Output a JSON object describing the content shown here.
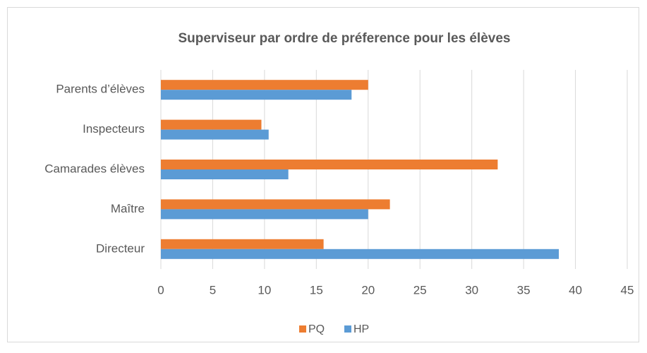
{
  "chart_data": {
    "type": "hbar",
    "title": "Superviseur par ordre de préference pour les élèves",
    "categories": [
      "Parents d’élèves",
      "Inspecteurs",
      "Camarades élèves",
      "Maître",
      "Directeur"
    ],
    "series": [
      {
        "name": "PQ",
        "color": "#ed7d31",
        "values": [
          20,
          9.7,
          32.5,
          22.1,
          15.7
        ]
      },
      {
        "name": "HP",
        "color": "#5b9bd5",
        "values": [
          18.4,
          10.4,
          12.3,
          20,
          38.4
        ]
      }
    ],
    "xlim": [
      0,
      45
    ],
    "xticks": [
      0,
      5,
      10,
      15,
      20,
      25,
      30,
      35,
      40,
      45
    ],
    "grid": true
  }
}
